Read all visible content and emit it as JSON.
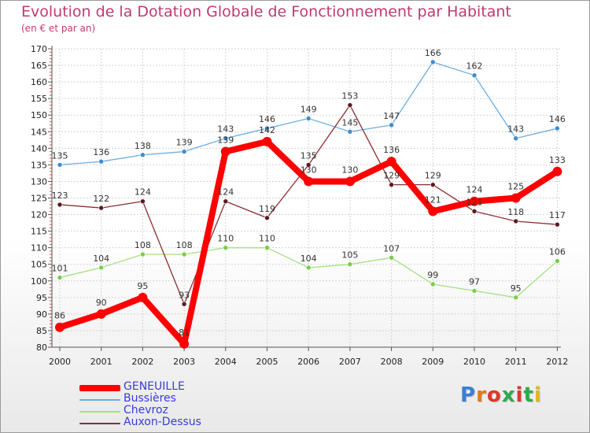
{
  "header": {
    "title": "Evolution de la Dotation Globale de Fonctionnement par Habitant",
    "subtitle": "(en € et par an)"
  },
  "brand": {
    "text": "Proxiti",
    "colors": [
      "#3a7fd5",
      "#e07a1f",
      "#d93b2b",
      "#2fa84f",
      "#d93b2b",
      "#2fa84f",
      "#e0b81f"
    ]
  },
  "chart_data": {
    "type": "line",
    "x": [
      "2000",
      "2001",
      "2002",
      "2003",
      "2004",
      "2005",
      "2006",
      "2007",
      "2008",
      "2009",
      "2010",
      "2011",
      "2012"
    ],
    "ylim": [
      80,
      170
    ],
    "yticks": [
      80,
      85,
      90,
      95,
      100,
      105,
      110,
      115,
      120,
      125,
      130,
      135,
      140,
      145,
      150,
      155,
      160,
      165,
      170
    ],
    "grid": true,
    "legend_position": "bottom-left",
    "series": [
      {
        "name": "GENEUILLE",
        "color": "#ff0000",
        "marker_color": "#ff0000",
        "values": [
          86,
          90,
          95,
          81,
          139,
          142,
          130,
          130,
          136,
          121,
          124,
          125,
          133
        ]
      },
      {
        "name": "Bussières",
        "color": "#6aaee0",
        "marker_color": "#3d8ccf",
        "values": [
          135,
          136,
          138,
          139,
          143,
          146,
          149,
          145,
          147,
          166,
          162,
          143,
          146
        ]
      },
      {
        "name": "Chevroz",
        "color": "#a4e082",
        "marker_color": "#7ccc4a",
        "values": [
          101,
          104,
          108,
          108,
          110,
          110,
          104,
          105,
          107,
          99,
          97,
          95,
          106
        ]
      },
      {
        "name": "Auxon-Dessus",
        "color": "#8b2e35",
        "marker_color": "#5a1a20",
        "values": [
          123,
          122,
          124,
          93,
          124,
          119,
          135,
          153,
          129,
          129,
          121,
          118,
          117
        ]
      }
    ]
  }
}
